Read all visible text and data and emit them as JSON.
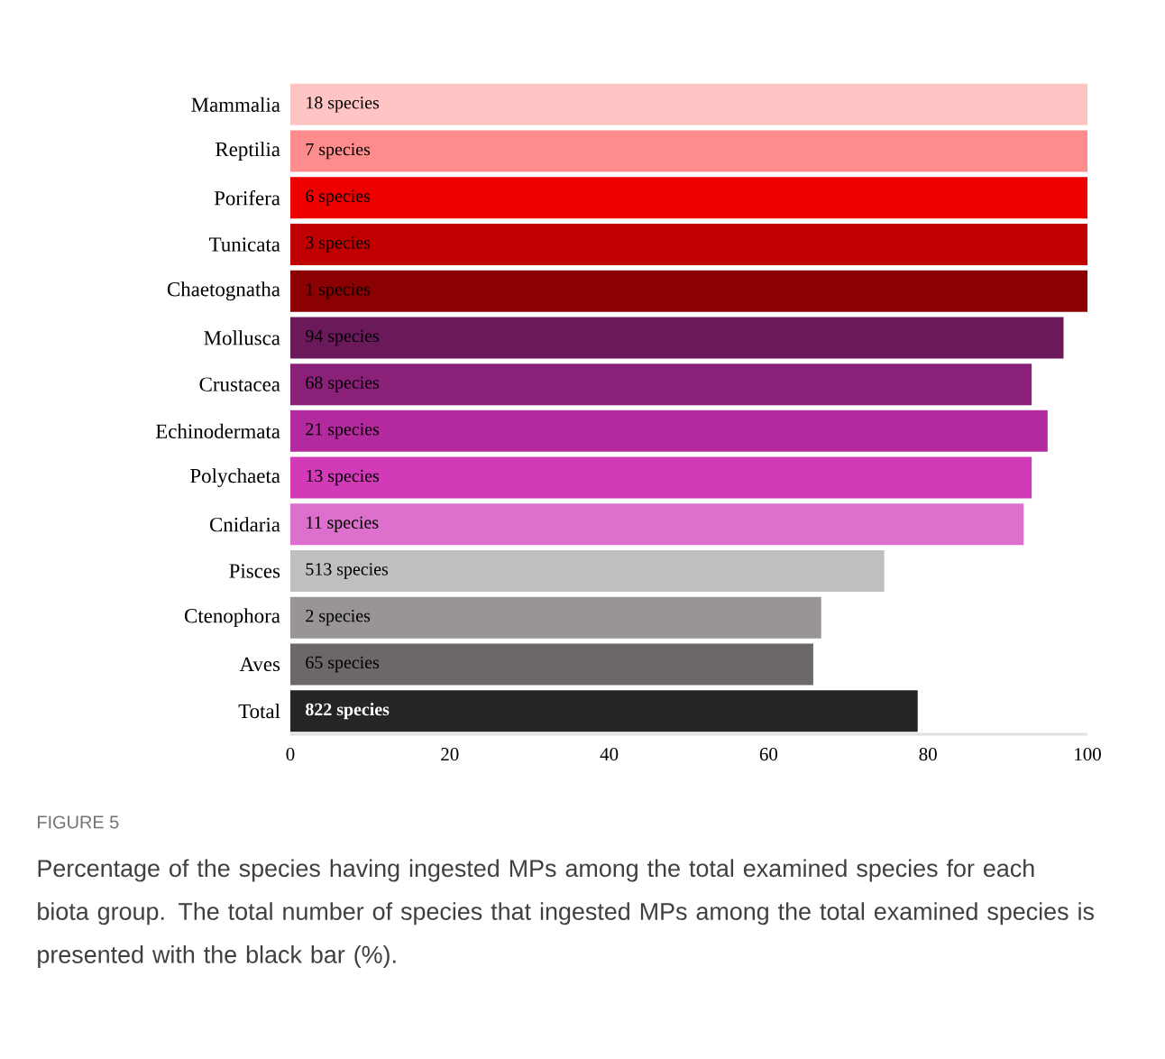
{
  "chart_data": {
    "type": "bar",
    "orientation": "horizontal",
    "categories": [
      "Mammalia",
      "Reptilia",
      "Porifera",
      "Tunicata",
      "Chaetognatha",
      "Mollusca",
      "Crustacea",
      "Echinodermata",
      "Polychaeta",
      "Cnidaria",
      "Pisces",
      "Ctenophora",
      "Aves",
      "Total"
    ],
    "values": [
      100,
      100,
      100,
      100,
      100,
      97,
      93,
      95,
      93,
      92,
      74.5,
      66.6,
      65.6,
      78.7
    ],
    "colors": [
      "#ffc5c5",
      "#ff8c8c",
      "#ee0000",
      "#c00000",
      "#8b0000",
      "#6a1a5a",
      "#8a2078",
      "#b22a9e",
      "#d23ab8",
      "#dd70cc",
      "#c0bebf",
      "#989594",
      "#6b6867",
      "#262424"
    ],
    "xlim": [
      0,
      100
    ],
    "xticks": [
      0,
      20,
      40,
      60,
      80,
      100
    ],
    "annotations": [
      "FIGURE 5",
      "Percentage of the species having ingested MPs among the total examined species for each biota group. The total number of species that ingested MPs among the total examined species is presented with the black bar (%).",
      {
        "text": "18 species",
        "y": "Mammalia"
      },
      {
        "text": "7 species",
        "y": "Reptilia"
      },
      {
        "text": "6 species",
        "y": "Porifera"
      },
      {
        "text": "3 species",
        "y": "Tunicata"
      },
      {
        "text": "1 species",
        "y": "Chaetognatha"
      },
      {
        "text": "94 species",
        "y": "Mollusca"
      },
      {
        "text": "68 species",
        "y": "Crustacea"
      },
      {
        "text": "21 species",
        "y": "Echinodermata"
      },
      {
        "text": "13 species",
        "y": "Polychaeta"
      },
      {
        "text": "11 species",
        "y": "Cnidaria"
      },
      {
        "text": "513 species",
        "y": "Pisces"
      },
      {
        "text": "2 species",
        "y": "Ctenophora"
      },
      {
        "text": "65 species",
        "y": "Aves"
      },
      {
        "text": "822 species",
        "y": "Total"
      }
    ]
  }
}
